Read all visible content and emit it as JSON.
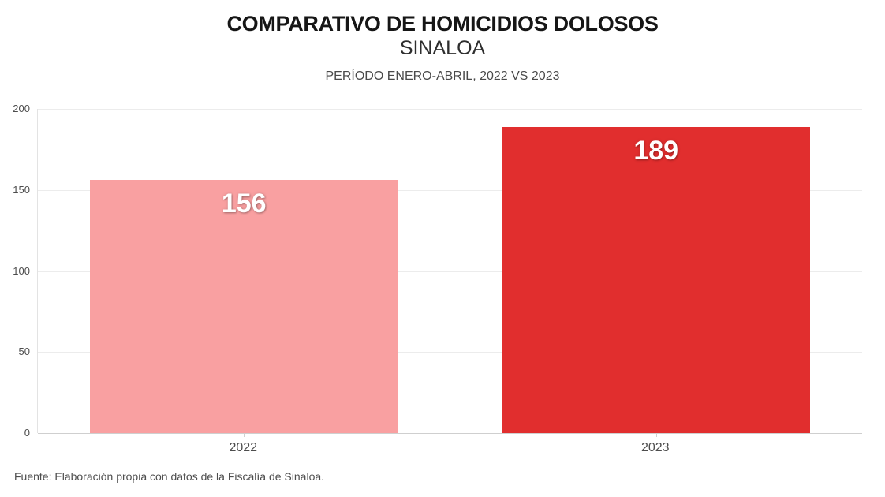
{
  "chart_data": {
    "type": "bar",
    "title": "COMPARATIVO DE HOMICIDIOS DOLOSOS",
    "subtitle": "SINALOA",
    "period_note": "PERÍODO ENERO-ABRIL, 2022 VS 2023",
    "source": "Fuente: Elaboración propia con datos de la Fiscalía de Sinaloa.",
    "categories": [
      "2022",
      "2023"
    ],
    "values": [
      156,
      189
    ],
    "value_labels": [
      "156",
      "189"
    ],
    "bar_colors": [
      "#f9a0a1",
      "#e12e2e"
    ],
    "value_label_color": "#ffffff",
    "xlabel": "",
    "ylabel": "",
    "ylim": [
      0,
      200
    ],
    "yticks": [
      0,
      50,
      100,
      150,
      200
    ],
    "grid": true,
    "legend": "none"
  }
}
